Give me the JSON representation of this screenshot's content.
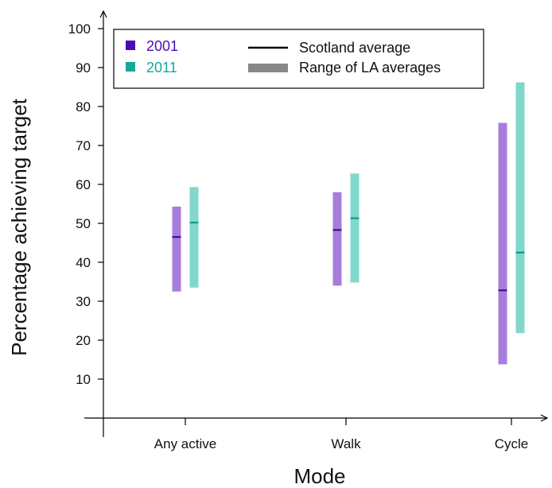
{
  "chart_data": {
    "type": "range-bar",
    "title": "",
    "xlabel": "Mode",
    "ylabel": "Percentage achieving target",
    "ylim": [
      0,
      100
    ],
    "yticks": [
      10,
      20,
      30,
      40,
      50,
      60,
      70,
      80,
      90,
      100
    ],
    "categories": [
      "Any active",
      "Walk",
      "Cycle"
    ],
    "series": [
      {
        "name": "2001",
        "color": "#a77ddb",
        "legend_color": "#4b0cb8",
        "avg_color": "#3a0f9e",
        "ranges": [
          [
            32.5,
            54.3
          ],
          [
            34.0,
            58.0
          ],
          [
            13.8,
            75.8
          ]
        ],
        "averages": [
          46.5,
          48.3,
          32.8
        ]
      },
      {
        "name": "2011",
        "color": "#80d8cb",
        "legend_color": "#12a99a",
        "avg_color": "#0e9a8a",
        "ranges": [
          [
            33.5,
            59.3
          ],
          [
            34.8,
            62.8
          ],
          [
            21.8,
            86.2
          ]
        ],
        "averages": [
          50.2,
          51.3,
          42.5
        ]
      }
    ],
    "legend": {
      "placement": "top-left",
      "entries": [
        {
          "label": "2001",
          "swatch": "square",
          "color": "#4b0cb8"
        },
        {
          "label": "2011",
          "swatch": "square",
          "color": "#12a99a"
        },
        {
          "label": "Scotland average",
          "swatch": "line",
          "color": "#000000"
        },
        {
          "label": "Range of LA averages",
          "swatch": "thick-bar",
          "color": "#888888"
        }
      ]
    },
    "grid": false
  }
}
